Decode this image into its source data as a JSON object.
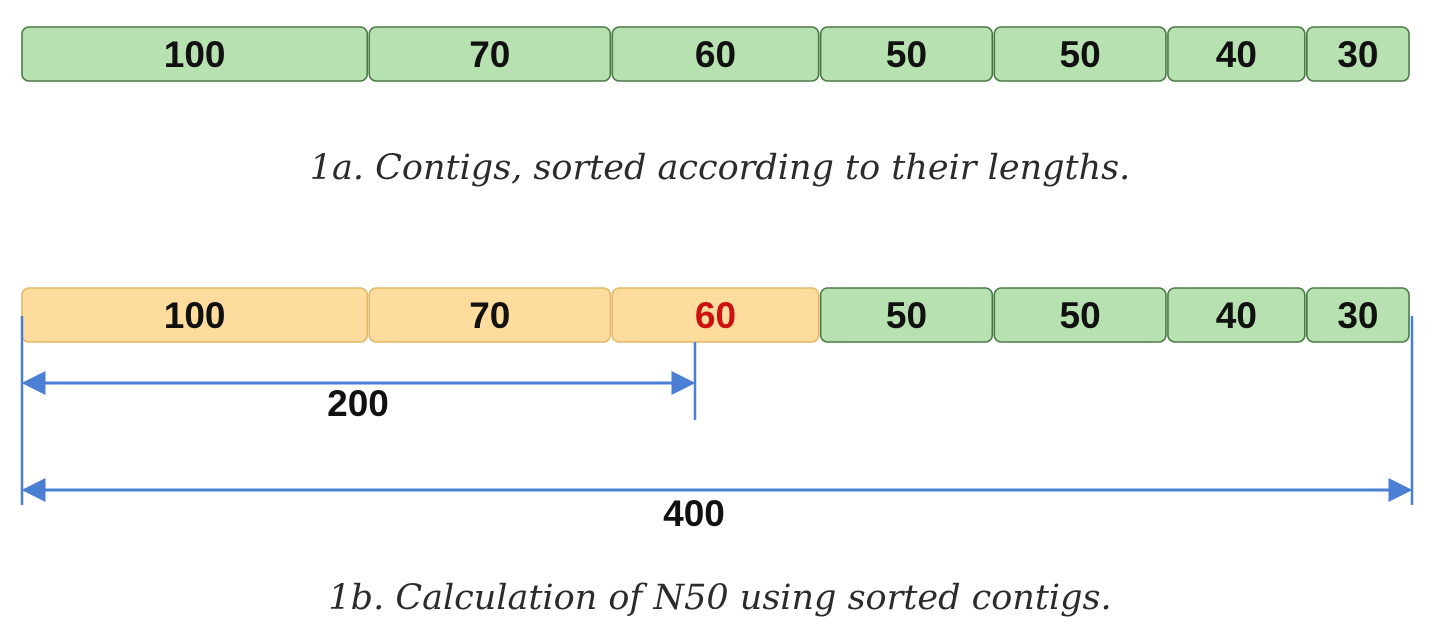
{
  "figure_a": {
    "contigs": [
      100,
      70,
      60,
      50,
      50,
      40,
      30
    ],
    "caption": "1a. Contigs, sorted according to their lengths."
  },
  "figure_b": {
    "contigs": [
      100,
      70,
      60,
      50,
      50,
      40,
      30
    ],
    "highlighted_count": 3,
    "n50_value": 60,
    "half_total_label": "200",
    "total_label": "400",
    "caption": "1b. Calculation of N50 using sorted contigs."
  },
  "colors": {
    "green_fill": "#b7e1b0",
    "green_stroke": "#4a7a45",
    "orange_fill": "#fddc9d",
    "orange_stroke": "#e3b768",
    "n50_text": "#cc1111",
    "segment_text": "#111111",
    "arrow": "#4a7fd4"
  }
}
